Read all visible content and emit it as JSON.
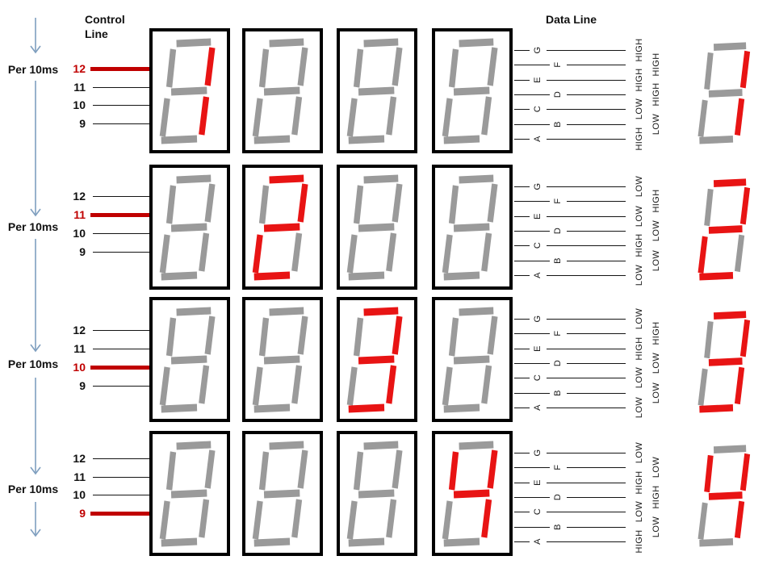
{
  "headers": {
    "control_line": "Control\nLine",
    "data_line": "Data Line"
  },
  "period_label": "Per 10ms",
  "control_pins": [
    "12",
    "11",
    "10",
    "9"
  ],
  "data_line_labels": [
    "G",
    "F",
    "E",
    "D",
    "C",
    "B",
    "A"
  ],
  "segment_map": {
    "1": [
      "B",
      "C"
    ],
    "2": [
      "A",
      "B",
      "G",
      "E",
      "D"
    ],
    "3": [
      "A",
      "B",
      "G",
      "C",
      "D"
    ],
    "4": [
      "F",
      "B",
      "G",
      "C"
    ]
  },
  "colors": {
    "segment_on": "#e81414",
    "segment_off": "#9a9a9a",
    "control_active": "#c00000",
    "wire_black": "#141414",
    "arrow_blue": "#7f9fbf",
    "box_border": "#000000",
    "text_black": "#1a1a1a"
  },
  "rows": [
    {
      "active_pin": "12",
      "display_digits": [
        "1",
        "",
        "",
        ""
      ],
      "data_values": {
        "G": "HIGH",
        "F": "HIGH",
        "E": "HIGH",
        "D": "HIGH",
        "C": "LOW",
        "B": "LOW",
        "A": "HIGH"
      },
      "result_digit": "1"
    },
    {
      "active_pin": "11",
      "display_digits": [
        "",
        "2",
        "",
        ""
      ],
      "data_values": {
        "G": "LOW",
        "F": "HIGH",
        "E": "LOW",
        "D": "LOW",
        "C": "HIGH",
        "B": "LOW",
        "A": "LOW"
      },
      "result_digit": "2"
    },
    {
      "active_pin": "10",
      "display_digits": [
        "",
        "",
        "3",
        ""
      ],
      "data_values": {
        "G": "LOW",
        "F": "HIGH",
        "E": "HIGH",
        "D": "LOW",
        "C": "LOW",
        "B": "LOW",
        "A": "LOW"
      },
      "result_digit": "3"
    },
    {
      "active_pin": "9",
      "display_digits": [
        "",
        "",
        "",
        "4"
      ],
      "data_values": {
        "G": "LOW",
        "F": "LOW",
        "E": "HIGH",
        "D": "HIGH",
        "C": "LOW",
        "B": "LOW",
        "A": "HIGH"
      },
      "result_digit": "4"
    }
  ]
}
